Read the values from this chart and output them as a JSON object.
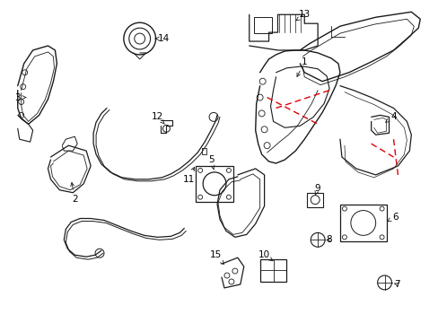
{
  "background_color": "#ffffff",
  "line_color": "#1a1a1a",
  "red_dash_color": "#e00000",
  "label_fontsize": 7.5,
  "fig_width": 4.89,
  "fig_height": 3.6,
  "dpi": 100
}
